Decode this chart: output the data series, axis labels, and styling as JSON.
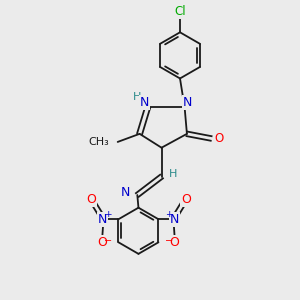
{
  "bg": "#ebebeb",
  "bond_color": "#1a1a1a",
  "color_N": "#0000cc",
  "color_O": "#ff0000",
  "color_Cl": "#00aa00",
  "color_H": "#2a8a8a",
  "color_C": "#1a1a1a",
  "lw": 1.3,
  "figsize": [
    3.0,
    3.0
  ],
  "dpi": 100,
  "xlim": [
    0,
    10
  ],
  "ylim": [
    0,
    13
  ]
}
